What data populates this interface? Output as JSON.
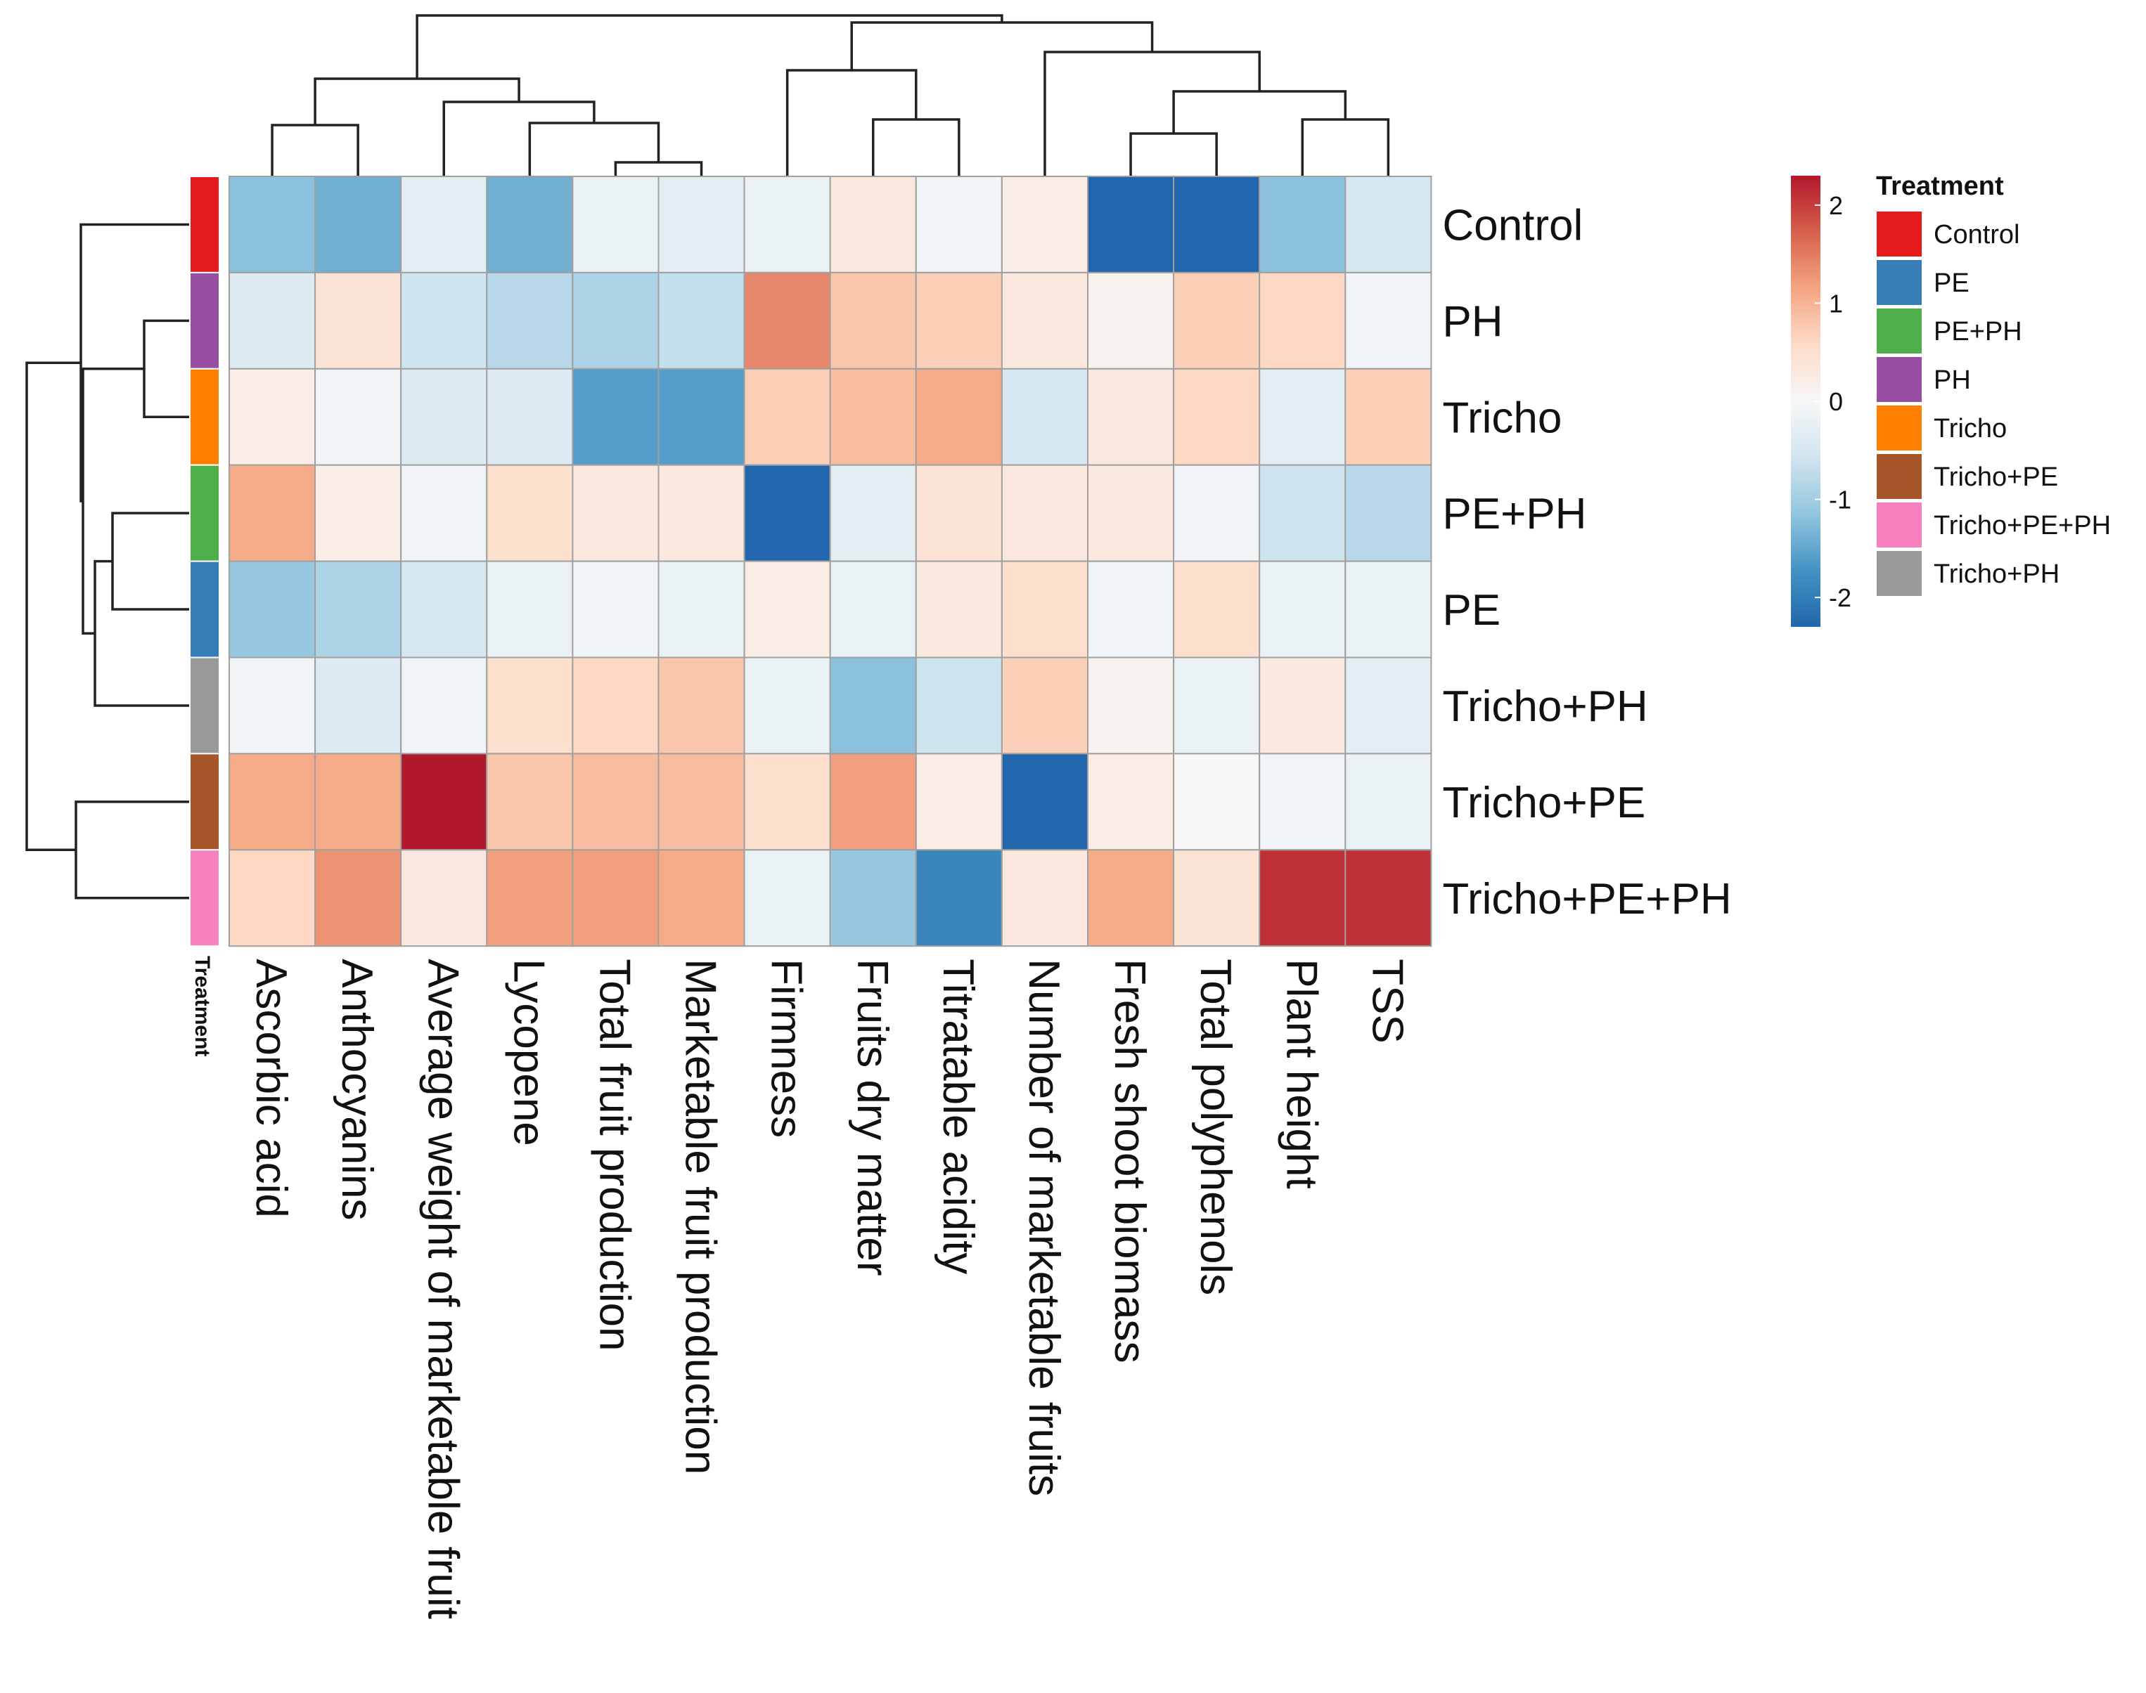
{
  "chart_data": {
    "type": "heatmap",
    "title": "",
    "rows": [
      "Control",
      "PH",
      "Tricho",
      "PE+PH",
      "PE",
      "Tricho+PH",
      "Tricho+PE",
      "Tricho+PE+PH"
    ],
    "columns": [
      "Ascorbic acid",
      "Anthocyanins",
      "Average weight of marketable fruit",
      "Lycopene",
      "Total fruit production",
      "Marketable fruit production",
      "Firmness",
      "Fruits dry matter",
      "Titratable acidity",
      "Number of marketable fruits",
      "Fresh shoot biomass",
      "Total polyphenols",
      "Plant height",
      "TSS"
    ],
    "values": [
      [
        -1.2,
        -1.4,
        -0.3,
        -1.4,
        -0.2,
        -0.3,
        -0.2,
        0.3,
        -0.1,
        0.2,
        -2.3,
        -2.3,
        -1.2,
        -0.5
      ],
      [
        -0.4,
        0.4,
        -0.6,
        -0.8,
        -0.9,
        -0.7,
        1.4,
        0.8,
        0.7,
        0.3,
        0.1,
        0.7,
        0.6,
        -0.1
      ],
      [
        0.2,
        -0.1,
        -0.4,
        -0.4,
        -1.6,
        -1.6,
        0.7,
        0.9,
        1.1,
        -0.5,
        0.3,
        0.6,
        -0.3,
        0.7
      ],
      [
        1.1,
        0.2,
        -0.1,
        0.5,
        0.3,
        0.3,
        -2.3,
        -0.3,
        0.4,
        0.3,
        0.3,
        -0.1,
        -0.6,
        -0.8
      ],
      [
        -1.1,
        -0.9,
        -0.5,
        -0.2,
        -0.1,
        -0.2,
        0.2,
        -0.2,
        0.3,
        0.5,
        -0.1,
        0.5,
        -0.2,
        -0.2
      ],
      [
        -0.1,
        -0.4,
        -0.1,
        0.5,
        0.6,
        0.8,
        -0.2,
        -1.2,
        -0.6,
        0.7,
        0.1,
        -0.2,
        0.3,
        -0.3
      ],
      [
        1.1,
        1.1,
        2.4,
        0.8,
        0.9,
        0.9,
        0.5,
        1.2,
        0.2,
        -2.3,
        0.2,
        0.0,
        -0.1,
        -0.2
      ],
      [
        0.6,
        1.3,
        0.3,
        1.2,
        1.2,
        1.1,
        -0.2,
        -1.1,
        -1.9,
        0.3,
        1.1,
        0.4,
        2.1,
        2.1
      ]
    ],
    "color_scale": {
      "min": -2.3,
      "max": 2.3,
      "ticks": [
        "2",
        "1",
        "0",
        "-1",
        "-2"
      ],
      "colors": [
        "#2166ac",
        "#4393c3",
        "#92c5de",
        "#d1e5f0",
        "#f7f7f7",
        "#fddbc7",
        "#f4a582",
        "#d6604d",
        "#b2182b"
      ]
    },
    "annotation": {
      "title": "Treatment",
      "legend": [
        {
          "label": "Control",
          "color": "#e41a1c"
        },
        {
          "label": "PE",
          "color": "#377eb8"
        },
        {
          "label": "PE+PH",
          "color": "#4daf4a"
        },
        {
          "label": "PH",
          "color": "#984ea3"
        },
        {
          "label": "Tricho",
          "color": "#ff7f00"
        },
        {
          "label": "Tricho+PE",
          "color": "#a65628"
        },
        {
          "label": "Tricho+PE+PH",
          "color": "#f781bf"
        },
        {
          "label": "Tricho+PH",
          "color": "#999999"
        }
      ]
    },
    "legend_position": "right",
    "grid": true
  }
}
